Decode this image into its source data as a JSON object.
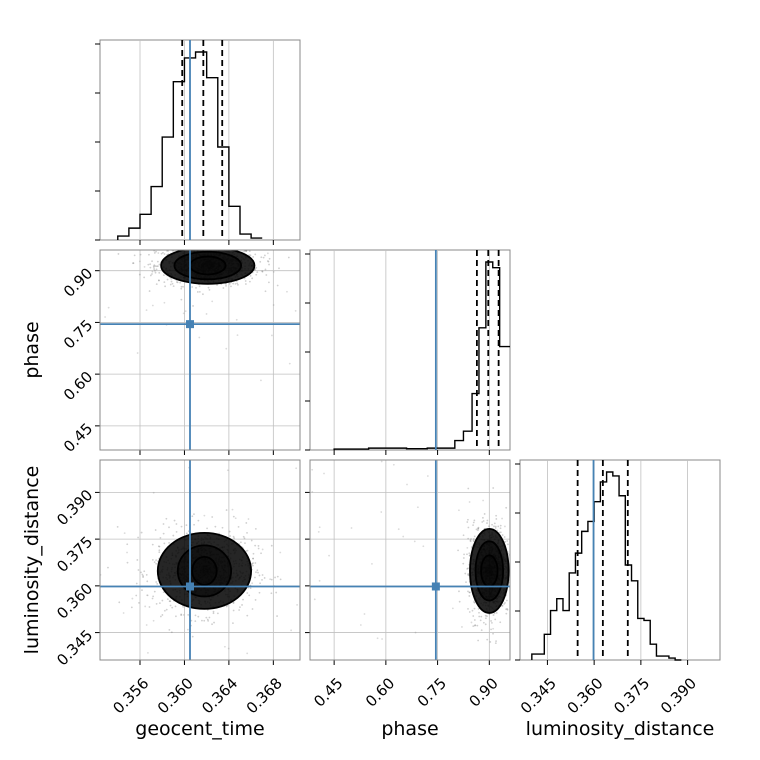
{
  "chart_data": {
    "type": "corner",
    "parameters": [
      "geocent_time",
      "phase",
      "luminosity_distance"
    ],
    "truths": {
      "geocent_time": 0.3605,
      "phase": 0.745,
      "luminosity_distance": 0.3598
    },
    "colors": {
      "truth": "#4682b4",
      "hist": "#000000",
      "grid": "#c0c0c0",
      "density": "#000000"
    },
    "panels": [
      {
        "id": "hist-geocent_time",
        "kind": "hist",
        "param": "geocent_time",
        "xlim": [
          0.3524,
          0.3704
        ],
        "bin_edges": [
          0.354,
          0.355,
          0.356,
          0.357,
          0.358,
          0.359,
          0.36,
          0.361,
          0.362,
          0.363,
          0.364,
          0.365,
          0.366,
          0.367
        ],
        "counts": [
          2,
          6,
          13,
          27,
          52,
          80,
          92,
          95,
          82,
          47,
          17,
          3,
          1
        ],
        "quantiles": [
          0.3598,
          0.3617,
          0.3634
        ]
      },
      {
        "id": "hist-phase",
        "kind": "hist",
        "param": "phase",
        "xlim": [
          0.38,
          0.96
        ],
        "bin_edges": [
          0.45,
          0.55,
          0.66,
          0.72,
          0.75,
          0.78,
          0.8,
          0.825,
          0.85,
          0.87,
          0.89,
          0.91,
          0.93,
          0.96
        ],
        "counts": [
          0.5,
          1,
          0.7,
          1,
          1,
          1,
          5,
          10,
          30,
          65,
          100,
          97,
          55
        ],
        "quantiles": [
          0.864,
          0.897,
          0.927
        ]
      },
      {
        "id": "hist-luminosity_distance",
        "kind": "hist",
        "param": "luminosity_distance",
        "xlim": [
          0.3362,
          0.4004
        ],
        "bin_edges": [
          0.34,
          0.344,
          0.346,
          0.348,
          0.35,
          0.352,
          0.354,
          0.356,
          0.358,
          0.36,
          0.362,
          0.364,
          0.366,
          0.368,
          0.37,
          0.372,
          0.374,
          0.376,
          0.378,
          0.38,
          0.384,
          0.386,
          0.388
        ],
        "counts": [
          3,
          13,
          25,
          31,
          25,
          44,
          54,
          65,
          70,
          80,
          90,
          95,
          93,
          83,
          48,
          40,
          21,
          20,
          8,
          2,
          1,
          0
        ],
        "quantiles": [
          0.3547,
          0.3628,
          0.3708
        ]
      },
      {
        "id": "scatter-phase-vs-geocent_time",
        "kind": "density2d",
        "xparam": "geocent_time",
        "yparam": "phase",
        "xlim": [
          0.3524,
          0.3704
        ],
        "ylim": [
          0.38,
          0.96
        ],
        "center": [
          0.3621,
          0.915
        ],
        "contour_radii": [
          {
            "rx": 0.0006,
            "ry": 0.012
          },
          {
            "rx": 0.0016,
            "ry": 0.026
          },
          {
            "rx": 0.003,
            "ry": 0.04
          },
          {
            "rx": 0.0042,
            "ry": 0.053
          }
        ]
      },
      {
        "id": "scatter-luminosity_distance-vs-geocent_time",
        "kind": "density2d",
        "xparam": "geocent_time",
        "yparam": "luminosity_distance",
        "xlim": [
          0.3524,
          0.3704
        ],
        "ylim": [
          0.3362,
          0.4004
        ],
        "center": [
          0.3618,
          0.3648
        ],
        "contour_radii": [
          {
            "rx": 0.0004,
            "ry": 0.0018
          },
          {
            "rx": 0.0011,
            "ry": 0.0045
          },
          {
            "rx": 0.0024,
            "ry": 0.0082
          },
          {
            "rx": 0.0042,
            "ry": 0.0122
          }
        ]
      },
      {
        "id": "scatter-luminosity_distance-vs-phase",
        "kind": "density2d",
        "xparam": "phase",
        "yparam": "luminosity_distance",
        "xlim": [
          0.38,
          0.96
        ],
        "ylim": [
          0.3362,
          0.4004
        ],
        "center": [
          0.9,
          0.3648
        ],
        "contour_radii": [
          {
            "rx": 0.012,
            "ry": 0.0018
          },
          {
            "rx": 0.024,
            "ry": 0.005
          },
          {
            "rx": 0.04,
            "ry": 0.0095
          },
          {
            "rx": 0.056,
            "ry": 0.0135
          }
        ]
      }
    ],
    "axes": {
      "geocent_time": {
        "label": "geocent_time",
        "ticks": [
          0.356,
          0.36,
          0.364,
          0.368
        ],
        "ticklabels": [
          "0.356",
          "0.360",
          "0.364",
          "0.368"
        ]
      },
      "phase": {
        "label": "phase",
        "ticks": [
          0.45,
          0.6,
          0.75,
          0.9
        ],
        "ticklabels": [
          "0.45",
          "0.60",
          "0.75",
          "0.90"
        ]
      },
      "luminosity_distance": {
        "label": "luminosity_distance",
        "ticks": [
          0.345,
          0.36,
          0.375,
          0.39
        ],
        "ticklabels": [
          "0.345",
          "0.360",
          "0.375",
          "0.390"
        ]
      }
    }
  }
}
